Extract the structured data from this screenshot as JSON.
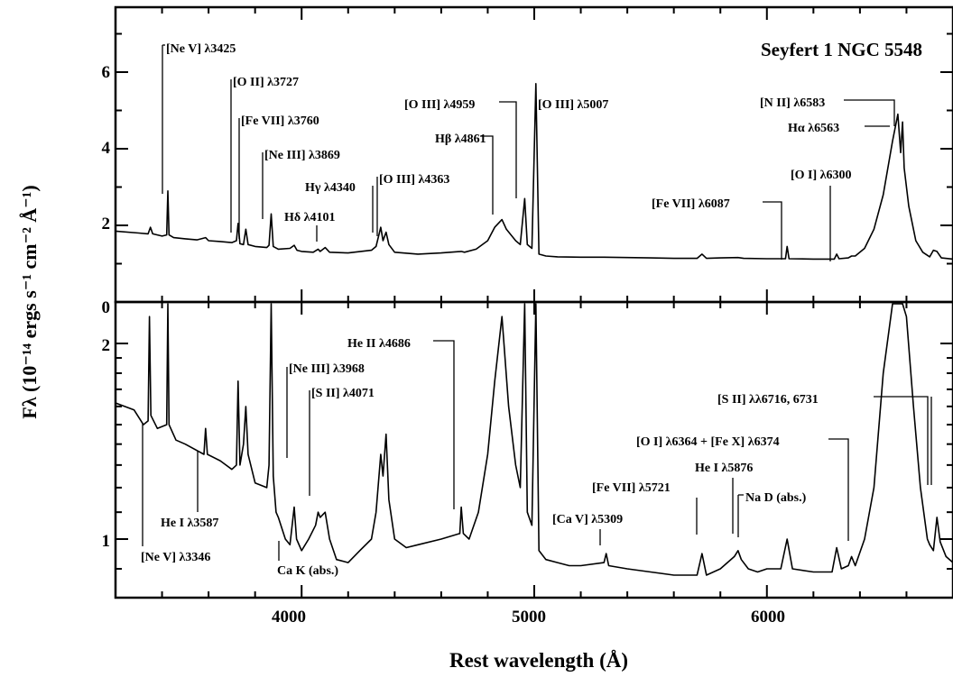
{
  "chart_data": [
    {
      "type": "line",
      "title": "Seyfert 1 NGC 5548",
      "xlabel": "Rest wavelength (Å)",
      "ylabel": "Fλ (10⁻¹⁴ ergs s⁻¹ cm⁻² Å⁻¹)",
      "xlim": [
        3200,
        6800
      ],
      "ylim": [
        0,
        7
      ],
      "x_ticks": [
        4000,
        5000,
        6000
      ],
      "y_ticks": [
        0,
        2,
        4,
        6
      ],
      "y_scale": "linear",
      "series": [
        {
          "x": [
            3200,
            3300,
            3340,
            3350,
            3360,
            3400,
            3420,
            3425,
            3430,
            3450,
            3500,
            3550,
            3587,
            3600,
            3650,
            3700,
            3720,
            3727,
            3735,
            3750,
            3760,
            3770,
            3800,
            3850,
            3860,
            3869,
            3878,
            3900,
            3950,
            3968,
            3980,
            4000,
            4050,
            4071,
            4080,
            4101,
            4120,
            4200,
            4300,
            4320,
            4340,
            4350,
            4363,
            4375,
            4400,
            4500,
            4600,
            4686,
            4700,
            4750,
            4800,
            4830,
            4861,
            4880,
            4920,
            4940,
            4959,
            4970,
            4990,
            5007,
            5020,
            5050,
            5100,
            5200,
            5300,
            5400,
            5500,
            5600,
            5700,
            5721,
            5740,
            5800,
            5876,
            5900,
            6000,
            6080,
            6087,
            6095,
            6200,
            6290,
            6300,
            6310,
            6350,
            6364,
            6380,
            6420,
            6460,
            6500,
            6540,
            6563,
            6575,
            6583,
            6590,
            6610,
            6640,
            6670,
            6700,
            6716,
            6731,
            6750,
            6800
          ],
          "y": [
            1.85,
            1.8,
            1.78,
            1.95,
            1.78,
            1.72,
            1.75,
            2.9,
            1.75,
            1.68,
            1.65,
            1.62,
            1.68,
            1.6,
            1.58,
            1.55,
            1.6,
            2.05,
            1.52,
            1.5,
            1.9,
            1.5,
            1.45,
            1.42,
            1.48,
            2.3,
            1.45,
            1.38,
            1.4,
            1.48,
            1.35,
            1.32,
            1.3,
            1.38,
            1.32,
            1.42,
            1.3,
            1.28,
            1.35,
            1.45,
            1.95,
            1.6,
            1.82,
            1.5,
            1.3,
            1.25,
            1.28,
            1.32,
            1.3,
            1.38,
            1.6,
            1.95,
            2.15,
            1.9,
            1.6,
            1.5,
            2.7,
            1.5,
            1.4,
            5.7,
            1.25,
            1.2,
            1.18,
            1.17,
            1.17,
            1.16,
            1.15,
            1.14,
            1.14,
            1.25,
            1.14,
            1.15,
            1.16,
            1.14,
            1.13,
            1.13,
            1.45,
            1.13,
            1.12,
            1.12,
            1.25,
            1.13,
            1.15,
            1.2,
            1.2,
            1.4,
            1.9,
            2.8,
            4.2,
            4.9,
            3.9,
            4.7,
            3.5,
            2.5,
            1.6,
            1.3,
            1.18,
            1.35,
            1.32,
            1.15,
            1.12
          ]
        }
      ]
    },
    {
      "type": "line",
      "xlabel": "Rest wavelength (Å)",
      "xlim": [
        3200,
        6800
      ],
      "y_scale": "log",
      "ylim": [
        0.8,
        2.6
      ],
      "x_ticks": [
        4000,
        5000,
        6000
      ],
      "y_ticks": [
        1,
        2
      ],
      "series": [
        {
          "x": [
            3200,
            3280,
            3320,
            3340,
            3346,
            3352,
            3380,
            3420,
            3425,
            3430,
            3460,
            3500,
            3580,
            3587,
            3595,
            3650,
            3700,
            3720,
            3727,
            3735,
            3750,
            3760,
            3770,
            3800,
            3850,
            3860,
            3869,
            3878,
            3890,
            3900,
            3930,
            3950,
            3968,
            3978,
            4000,
            4030,
            4060,
            4071,
            4080,
            4101,
            4120,
            4150,
            4200,
            4250,
            4300,
            4320,
            4340,
            4350,
            4363,
            4375,
            4400,
            4450,
            4500,
            4600,
            4680,
            4686,
            4695,
            4720,
            4760,
            4800,
            4830,
            4861,
            4890,
            4920,
            4940,
            4959,
            4970,
            4990,
            5007,
            5020,
            5050,
            5100,
            5150,
            5200,
            5300,
            5309,
            5320,
            5400,
            5500,
            5600,
            5700,
            5721,
            5740,
            5800,
            5860,
            5876,
            5890,
            5920,
            5960,
            6000,
            6060,
            6087,
            6110,
            6200,
            6280,
            6300,
            6320,
            6350,
            6364,
            6380,
            6420,
            6460,
            6500,
            6540,
            6563,
            6583,
            6600,
            6630,
            6660,
            6690,
            6700,
            6716,
            6731,
            6745,
            6770,
            6800
          ],
          "y": [
            1.62,
            1.58,
            1.5,
            1.52,
            2.2,
            1.55,
            1.48,
            1.5,
            2.8,
            1.5,
            1.42,
            1.4,
            1.35,
            1.48,
            1.35,
            1.32,
            1.28,
            1.3,
            1.75,
            1.3,
            1.4,
            1.6,
            1.35,
            1.22,
            1.2,
            1.3,
            2.7,
            1.25,
            1.1,
            1.08,
            1.0,
            0.98,
            1.12,
            1.0,
            0.96,
            1.0,
            1.05,
            1.1,
            1.08,
            1.1,
            1.0,
            0.93,
            0.92,
            0.96,
            1.0,
            1.1,
            1.35,
            1.25,
            1.45,
            1.15,
            1.0,
            0.97,
            0.98,
            1.0,
            1.02,
            1.12,
            1.02,
            1.0,
            1.1,
            1.35,
            1.75,
            2.2,
            1.6,
            1.3,
            1.2,
            2.6,
            1.1,
            1.05,
            2.6,
            0.96,
            0.93,
            0.92,
            0.91,
            0.91,
            0.92,
            0.95,
            0.91,
            0.9,
            0.89,
            0.88,
            0.88,
            0.95,
            0.88,
            0.9,
            0.94,
            0.96,
            0.93,
            0.9,
            0.89,
            0.9,
            0.9,
            1.0,
            0.9,
            0.89,
            0.89,
            0.97,
            0.9,
            0.91,
            0.94,
            0.91,
            1.0,
            1.2,
            1.8,
            2.6,
            2.6,
            2.6,
            2.2,
            1.6,
            1.2,
            1.0,
            0.98,
            0.96,
            1.08,
            0.99,
            0.94,
            0.92
          ]
        }
      ]
    }
  ],
  "labels": {
    "title": "Seyfert 1 NGC 5548",
    "xlabel": "Rest wavelength (Å)",
    "ylabel": "Fλ (10⁻¹⁴ ergs s⁻¹ cm⁻² Å⁻¹)",
    "tick_top": [
      "2",
      "4",
      "6"
    ],
    "tick_top_zero": "0",
    "tick_bottom": [
      "1",
      "2"
    ],
    "tick_x": [
      "4000",
      "5000",
      "6000"
    ]
  },
  "annotations_top": [
    {
      "text": "[Ne V] λ3425",
      "wavelength": 3425
    },
    {
      "text": "[O II] λ3727",
      "wavelength": 3727
    },
    {
      "text": "[Fe VII] λ3760",
      "wavelength": 3760
    },
    {
      "text": "[Ne III] λ3869",
      "wavelength": 3869
    },
    {
      "text": "Hγ λ4340",
      "wavelength": 4340
    },
    {
      "text": "[O III] λ4363",
      "wavelength": 4363
    },
    {
      "text": "Hδ λ4101",
      "wavelength": 4101
    },
    {
      "text": "[O III] λ4959",
      "wavelength": 4959
    },
    {
      "text": "[O III] λ5007",
      "wavelength": 5007
    },
    {
      "text": "Hβ λ4861",
      "wavelength": 4861
    },
    {
      "text": "[N II] λ6583",
      "wavelength": 6583
    },
    {
      "text": "Hα λ6563",
      "wavelength": 6563
    },
    {
      "text": "[O I] λ6300",
      "wavelength": 6300
    },
    {
      "text": "[Fe VII] λ6087",
      "wavelength": 6087
    }
  ],
  "annotations_bottom": [
    {
      "text": "He II λ4686",
      "wavelength": 4686
    },
    {
      "text": "[Ne III] λ3968",
      "wavelength": 3968
    },
    {
      "text": "[S II] λ4071",
      "wavelength": 4071
    },
    {
      "text": "[S II] λλ6716, 6731",
      "wavelength": 6716
    },
    {
      "text": "[O I] λ6364 + [Fe X] λ6374",
      "wavelength": 6364
    },
    {
      "text": "He I λ5876",
      "wavelength": 5876
    },
    {
      "text": "[Fe VII] λ5721",
      "wavelength": 5721
    },
    {
      "text": "Na D (abs.)",
      "wavelength": 5893
    },
    {
      "text": "[Ca V] λ5309",
      "wavelength": 5309
    },
    {
      "text": "He I λ3587",
      "wavelength": 3587
    },
    {
      "text": "[Ne V] λ3346",
      "wavelength": 3346
    },
    {
      "text": "Ca K (abs.)",
      "wavelength": 3934
    }
  ]
}
